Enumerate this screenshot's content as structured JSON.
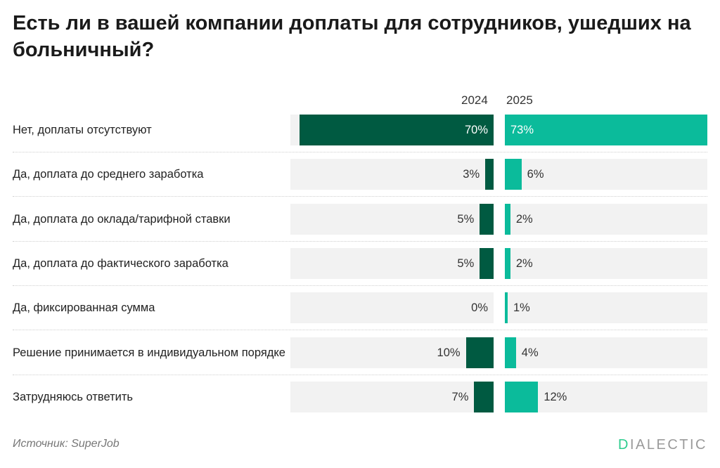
{
  "title": "Есть ли в вашей компании доплаты для сотрудников, ушедших на больничный?",
  "source": "Источник: SuperJob",
  "logo": {
    "first": "D",
    "rest": "IALECTIC"
  },
  "chart_data": {
    "type": "bar",
    "orientation": "horizontal",
    "title": "Есть ли в вашей компании доплаты для сотрудников, ушедших на больничный?",
    "categories": [
      "Нет, доплаты отсутствуют",
      "Да, доплата до среднего заработка",
      "Да, доплата до оклада/тарифной ставки",
      "Да, доплата до фактического заработка",
      "Да, фиксированная сумма",
      "Решение принимается в индивидуальном порядке",
      "Затрудняюсь ответить"
    ],
    "series": [
      {
        "name": "2024",
        "values": [
          70,
          3,
          5,
          5,
          0,
          10,
          7
        ],
        "color": "#005a41"
      },
      {
        "name": "2025",
        "values": [
          73,
          6,
          2,
          2,
          1,
          4,
          12
        ],
        "color": "#0bbb9b"
      }
    ],
    "unit": "%",
    "xlim": [
      0,
      73
    ],
    "grid": false,
    "legend": "top"
  }
}
